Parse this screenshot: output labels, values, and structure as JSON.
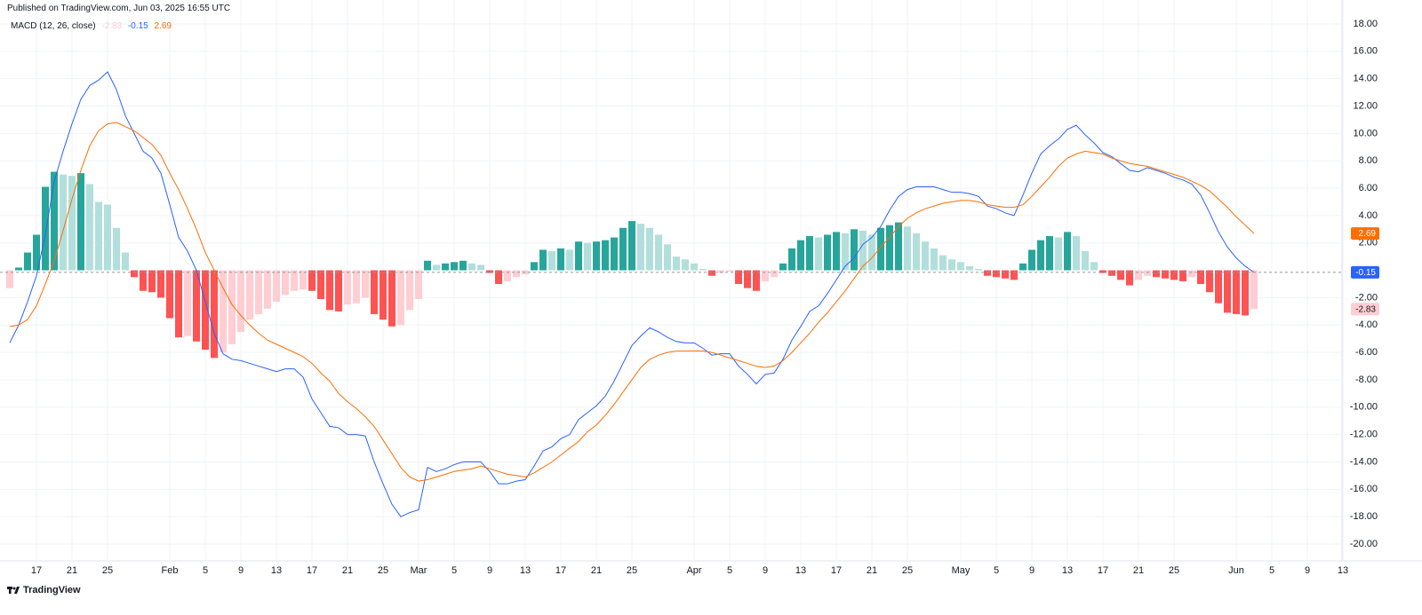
{
  "header": "Published on TradingView.com, Jun 03, 2025 16:55 UTC",
  "footer": "TradingView",
  "chart_data": {
    "type": "combo",
    "title": "MACD (12, 26, close)",
    "categories": [
      "Jan 14",
      "Jan 15",
      "Jan 16",
      "Jan 17",
      "Jan 18",
      "Jan 19",
      "Jan 20",
      "Jan 21",
      "Jan 22",
      "Jan 23",
      "Jan 24",
      "Jan 25",
      "Jan 26",
      "Jan 27",
      "Jan 28",
      "Jan 29",
      "Jan 30",
      "Jan 31",
      "Feb 1",
      "Feb 2",
      "Feb 3",
      "Feb 4",
      "Feb 5",
      "Feb 6",
      "Feb 7",
      "Feb 8",
      "Feb 9",
      "Feb 10",
      "Feb 11",
      "Feb 12",
      "Feb 13",
      "Feb 14",
      "Feb 15",
      "Feb 16",
      "Feb 17",
      "Feb 18",
      "Feb 19",
      "Feb 20",
      "Feb 21",
      "Feb 22",
      "Feb 23",
      "Feb 24",
      "Feb 25",
      "Feb 26",
      "Feb 27",
      "Feb 28",
      "Mar 1",
      "Mar 2",
      "Mar 3",
      "Mar 4",
      "Mar 5",
      "Mar 6",
      "Mar 7",
      "Mar 8",
      "Mar 9",
      "Mar 10",
      "Mar 11",
      "Mar 12",
      "Mar 13",
      "Mar 14",
      "Mar 15",
      "Mar 16",
      "Mar 17",
      "Mar 18",
      "Mar 19",
      "Mar 20",
      "Mar 21",
      "Mar 22",
      "Mar 23",
      "Mar 24",
      "Mar 25",
      "Mar 26",
      "Mar 27",
      "Mar 28",
      "Mar 29",
      "Mar 30",
      "Mar 31",
      "Apr 1",
      "Apr 2",
      "Apr 3",
      "Apr 4",
      "Apr 5",
      "Apr 6",
      "Apr 7",
      "Apr 8",
      "Apr 9",
      "Apr 10",
      "Apr 11",
      "Apr 12",
      "Apr 13",
      "Apr 14",
      "Apr 15",
      "Apr 16",
      "Apr 17",
      "Apr 18",
      "Apr 19",
      "Apr 20",
      "Apr 21",
      "Apr 22",
      "Apr 23",
      "Apr 24",
      "Apr 25",
      "Apr 26",
      "Apr 27",
      "Apr 28",
      "Apr 29",
      "Apr 30",
      "May 1",
      "May 2",
      "May 3",
      "May 4",
      "May 5",
      "May 6",
      "May 7",
      "May 8",
      "May 9",
      "May 10",
      "May 11",
      "May 12",
      "May 13",
      "May 14",
      "May 15",
      "May 16",
      "May 17",
      "May 18",
      "May 19",
      "May 20",
      "May 21",
      "May 22",
      "May 23",
      "May 24",
      "May 25",
      "May 26",
      "May 27",
      "May 28",
      "May 29",
      "May 30",
      "May 31",
      "Jun 1",
      "Jun 2",
      "Jun 3"
    ],
    "series": [
      {
        "type": "bar",
        "colors": [
          "#26a69a",
          "#b2dfdb",
          "#ffcdd2",
          "#ff5252"
        ],
        "values": [
          -1.3,
          0.2,
          1.3,
          2.6,
          6.1,
          7.2,
          7.0,
          6.9,
          7.1,
          6.3,
          5.0,
          4.8,
          3.1,
          1.3,
          -0.5,
          -1.5,
          -1.6,
          -2.0,
          -3.5,
          -4.9,
          -4.8,
          -5.2,
          -5.8,
          -6.4,
          -6.0,
          -5.4,
          -4.5,
          -3.6,
          -3.2,
          -2.8,
          -2.3,
          -1.8,
          -1.5,
          -1.4,
          -1.5,
          -2.1,
          -2.9,
          -3.0,
          -2.5,
          -2.4,
          -2.0,
          -3.2,
          -3.6,
          -4.1,
          -4.0,
          -2.9,
          -2.1,
          0.7,
          0.4,
          0.5,
          0.6,
          0.7,
          0.5,
          0.4,
          -0.2,
          -1.0,
          -0.8,
          -0.5,
          -0.3,
          0.6,
          1.5,
          1.4,
          1.6,
          1.5,
          2.1,
          2.0,
          2.1,
          2.2,
          2.4,
          3.1,
          3.6,
          3.4,
          3.1,
          2.6,
          1.9,
          1.0,
          0.8,
          0.5,
          0.1,
          -0.4,
          -0.2,
          -0.1,
          -1.0,
          -1.3,
          -1.5,
          -0.8,
          -0.5,
          0.5,
          1.6,
          2.2,
          2.5,
          2.4,
          2.6,
          2.8,
          2.7,
          3.0,
          2.9,
          2.6,
          3.1,
          3.3,
          3.5,
          3.2,
          2.7,
          2.1,
          1.6,
          1.1,
          0.8,
          0.6,
          0.3,
          0.1,
          -0.4,
          -0.5,
          -0.6,
          -0.7,
          0.5,
          1.5,
          2.2,
          2.5,
          2.4,
          2.8,
          2.5,
          1.4,
          0.6,
          -0.2,
          -0.4,
          -0.7,
          -1.1,
          -0.7,
          -0.4,
          -0.5,
          -0.6,
          -0.7,
          -0.8,
          -0.5,
          -1.0,
          -1.6,
          -2.4,
          -3.1,
          -3.2,
          -3.3,
          -2.83
        ]
      },
      {
        "type": "line",
        "color": "#2962ff",
        "values": [
          -5.3,
          -4.0,
          -2.3,
          -0.4,
          2.6,
          6.5,
          8.7,
          10.7,
          12.5,
          13.5,
          13.9,
          14.5,
          13.2,
          11.3,
          10.0,
          8.7,
          8.2,
          7.1,
          4.8,
          2.4,
          1.4,
          0.0,
          -2.3,
          -4.6,
          -6.1,
          -6.5,
          -6.6,
          -6.8,
          -7.0,
          -7.2,
          -7.4,
          -7.2,
          -7.2,
          -7.8,
          -9.4,
          -10.4,
          -11.4,
          -11.5,
          -12.0,
          -12.0,
          -12.1,
          -14.0,
          -15.6,
          -17.1,
          -18.0,
          -17.7,
          -17.5,
          -14.4,
          -14.7,
          -14.5,
          -14.2,
          -14.0,
          -14.0,
          -14.0,
          -14.7,
          -15.6,
          -15.6,
          -15.4,
          -15.3,
          -14.3,
          -13.2,
          -12.9,
          -12.3,
          -12.0,
          -10.9,
          -10.4,
          -9.9,
          -9.2,
          -8.1,
          -6.8,
          -5.5,
          -4.8,
          -4.2,
          -4.5,
          -4.9,
          -5.2,
          -5.3,
          -5.3,
          -5.7,
          -6.2,
          -6.1,
          -6.1,
          -7.0,
          -7.6,
          -8.3,
          -7.6,
          -7.5,
          -6.5,
          -5.1,
          -4.1,
          -3.0,
          -2.6,
          -1.7,
          -0.7,
          0.3,
          0.9,
          1.9,
          2.4,
          3.2,
          4.4,
          5.4,
          5.9,
          6.1,
          6.1,
          6.1,
          5.9,
          5.7,
          5.7,
          5.6,
          5.4,
          4.7,
          4.5,
          4.2,
          4.0,
          5.5,
          7.1,
          8.5,
          9.1,
          9.6,
          10.3,
          10.6,
          9.9,
          9.3,
          8.6,
          8.3,
          7.8,
          7.3,
          7.2,
          7.5,
          7.3,
          7.1,
          6.8,
          6.6,
          6.3,
          5.5,
          4.2,
          2.8,
          1.7,
          0.9,
          0.3,
          -0.15
        ]
      },
      {
        "type": "line",
        "color": "#ff6d00",
        "values": [
          -4.1,
          -4.0,
          -3.6,
          -2.6,
          -1.0,
          0.7,
          2.9,
          5.2,
          7.3,
          9.1,
          10.2,
          10.7,
          10.8,
          10.5,
          10.2,
          9.7,
          9.2,
          8.4,
          7.1,
          5.9,
          4.5,
          3.0,
          1.3,
          0.0,
          -1.3,
          -2.5,
          -3.3,
          -4.0,
          -4.6,
          -5.1,
          -5.4,
          -5.7,
          -6.0,
          -6.3,
          -6.8,
          -7.5,
          -8.1,
          -9.0,
          -9.6,
          -10.1,
          -10.7,
          -11.4,
          -12.4,
          -13.4,
          -14.4,
          -15.1,
          -15.4,
          -15.3,
          -15.1,
          -14.9,
          -14.7,
          -14.6,
          -14.5,
          -14.3,
          -14.5,
          -14.7,
          -14.9,
          -15.0,
          -15.1,
          -14.8,
          -14.4,
          -14.0,
          -13.5,
          -13.0,
          -12.5,
          -11.8,
          -11.3,
          -10.6,
          -9.8,
          -8.9,
          -8.0,
          -7.1,
          -6.5,
          -6.2,
          -6.0,
          -5.9,
          -5.9,
          -5.9,
          -5.9,
          -6.0,
          -6.2,
          -6.4,
          -6.6,
          -6.8,
          -7.0,
          -7.1,
          -7.0,
          -6.6,
          -6.0,
          -5.3,
          -4.6,
          -3.8,
          -3.1,
          -2.3,
          -1.5,
          -0.6,
          0.3,
          0.9,
          1.7,
          2.4,
          3.2,
          3.8,
          4.2,
          4.5,
          4.7,
          4.9,
          5.0,
          5.1,
          5.1,
          5.0,
          4.8,
          4.7,
          4.6,
          4.6,
          4.8,
          5.4,
          6.1,
          6.8,
          7.6,
          8.2,
          8.5,
          8.7,
          8.6,
          8.5,
          8.2,
          8.0,
          7.8,
          7.7,
          7.6,
          7.4,
          7.2,
          7.0,
          6.8,
          6.5,
          6.2,
          5.8,
          5.2,
          4.6,
          3.9,
          3.3,
          2.69
        ]
      }
    ],
    "ylim": [
      -21.23,
      19.75
    ],
    "yticks": [
      {
        "value": 18,
        "label": "18.00"
      },
      {
        "value": 16,
        "label": "16.00"
      },
      {
        "value": 14,
        "label": "14.00"
      },
      {
        "value": 12,
        "label": "12.00"
      },
      {
        "value": 10,
        "label": "10.00"
      },
      {
        "value": 8,
        "label": "8.00"
      },
      {
        "value": 6,
        "label": "6.00"
      },
      {
        "value": 4,
        "label": "4.00"
      },
      {
        "value": 2,
        "label": "2.00"
      },
      {
        "value": -2,
        "label": "-2.00"
      },
      {
        "value": -4,
        "label": "-4.00"
      },
      {
        "value": -6,
        "label": "-6.00"
      },
      {
        "value": -8,
        "label": "-8.00"
      },
      {
        "value": -10,
        "label": "-10.00"
      },
      {
        "value": -12,
        "label": "-12.00"
      },
      {
        "value": -14,
        "label": "-14.00"
      },
      {
        "value": -16,
        "label": "-16.00"
      },
      {
        "value": -18,
        "label": "-18.00"
      },
      {
        "value": -20,
        "label": "-20.00"
      }
    ],
    "xticks": [
      {
        "value": "Jan 17",
        "label": "17"
      },
      {
        "value": "Jan 21",
        "label": "21"
      },
      {
        "value": "Jan 25",
        "label": "25"
      },
      {
        "value": "Feb 1",
        "label": "Feb"
      },
      {
        "value": "Feb 5",
        "label": "5"
      },
      {
        "value": "Feb 9",
        "label": "9"
      },
      {
        "value": "Feb 13",
        "label": "13"
      },
      {
        "value": "Feb 17",
        "label": "17"
      },
      {
        "value": "Feb 21",
        "label": "21"
      },
      {
        "value": "Feb 25",
        "label": "25"
      },
      {
        "value": "Mar 1",
        "label": "Mar"
      },
      {
        "value": "Mar 5",
        "label": "5"
      },
      {
        "value": "Mar 9",
        "label": "9"
      },
      {
        "value": "Mar 13",
        "label": "13"
      },
      {
        "value": "Mar 17",
        "label": "17"
      },
      {
        "value": "Mar 21",
        "label": "21"
      },
      {
        "value": "Mar 25",
        "label": "25"
      },
      {
        "value": "Apr 1",
        "label": "Apr"
      },
      {
        "value": "Apr 5",
        "label": "5"
      },
      {
        "value": "Apr 9",
        "label": "9"
      },
      {
        "value": "Apr 13",
        "label": "13"
      },
      {
        "value": "Apr 17",
        "label": "17"
      },
      {
        "value": "Apr 21",
        "label": "21"
      },
      {
        "value": "Apr 25",
        "label": "25"
      },
      {
        "value": "May 1",
        "label": "May"
      },
      {
        "value": "May 5",
        "label": "5"
      },
      {
        "value": "May 9",
        "label": "9"
      },
      {
        "value": "May 13",
        "label": "13"
      },
      {
        "value": "May 17",
        "label": "17"
      },
      {
        "value": "May 21",
        "label": "21"
      },
      {
        "value": "May 25",
        "label": "25"
      },
      {
        "value": "Jun 1",
        "label": "Jun"
      },
      {
        "value": "Jun 5",
        "label": "5"
      },
      {
        "value": "Jun 9",
        "label": "9"
      },
      {
        "value": "Jun 13",
        "label": "13"
      }
    ],
    "grid": true
  }
}
